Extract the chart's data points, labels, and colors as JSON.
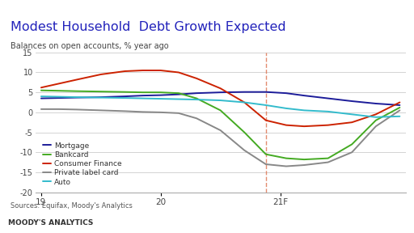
{
  "title": "Modest Household  Debt Growth Expected",
  "subtitle": "Balances on open accounts, % year ago",
  "source": "Sources: Equifax, Moody's Analytics",
  "footer": "MOODY'S ANALYTICS",
  "title_color": "#2222bb",
  "subtitle_color": "#444444",
  "source_color": "#555555",
  "footer_color": "#333333",
  "bg_color": "#ffffff",
  "footer_bg": "#d4d4d4",
  "plot_bg": "#ffffff",
  "grid_color": "#cccccc",
  "ylim": [
    -20,
    15
  ],
  "yticks": [
    -20,
    -15,
    -10,
    -5,
    0,
    5,
    10,
    15
  ],
  "xtick_labels": [
    "19",
    "20",
    "21F"
  ],
  "xtick_positions": [
    0.0,
    1.0,
    2.0
  ],
  "vline_x": 1.88,
  "series": {
    "Mortgage": {
      "color": "#1c1c99",
      "x": [
        0.0,
        0.15,
        0.3,
        0.5,
        0.7,
        0.85,
        1.0,
        1.15,
        1.3,
        1.5,
        1.7,
        1.88,
        2.05,
        2.2,
        2.4,
        2.6,
        2.8,
        3.0
      ],
      "y": [
        3.5,
        3.6,
        3.7,
        3.8,
        4.0,
        4.2,
        4.3,
        4.5,
        4.8,
        5.0,
        5.1,
        5.1,
        4.8,
        4.2,
        3.5,
        2.8,
        2.2,
        1.8
      ]
    },
    "Bankcard": {
      "color": "#44aa22",
      "x": [
        0.0,
        0.15,
        0.3,
        0.5,
        0.7,
        0.85,
        1.0,
        1.15,
        1.3,
        1.5,
        1.7,
        1.88,
        2.05,
        2.2,
        2.4,
        2.6,
        2.8,
        3.0
      ],
      "y": [
        5.5,
        5.4,
        5.3,
        5.2,
        5.1,
        5.0,
        5.0,
        4.8,
        3.5,
        0.5,
        -5.0,
        -10.5,
        -11.5,
        -11.8,
        -11.5,
        -8.0,
        -2.0,
        1.2
      ]
    },
    "Consumer Finance": {
      "color": "#cc2200",
      "x": [
        0.0,
        0.15,
        0.3,
        0.5,
        0.7,
        0.85,
        1.0,
        1.15,
        1.3,
        1.5,
        1.7,
        1.88,
        2.05,
        2.2,
        2.4,
        2.6,
        2.8,
        3.0
      ],
      "y": [
        6.2,
        7.2,
        8.2,
        9.5,
        10.3,
        10.5,
        10.5,
        10.0,
        8.5,
        6.0,
        2.5,
        -2.0,
        -3.2,
        -3.5,
        -3.2,
        -2.5,
        -0.5,
        2.5
      ]
    },
    "Private label card": {
      "color": "#888888",
      "x": [
        0.0,
        0.15,
        0.3,
        0.5,
        0.7,
        0.85,
        1.0,
        1.15,
        1.3,
        1.5,
        1.7,
        1.88,
        2.05,
        2.2,
        2.4,
        2.6,
        2.8,
        3.0
      ],
      "y": [
        0.8,
        0.8,
        0.7,
        0.5,
        0.3,
        0.1,
        0.0,
        -0.2,
        -1.5,
        -4.5,
        -9.5,
        -13.0,
        -13.5,
        -13.2,
        -12.5,
        -10.0,
        -3.5,
        0.5
      ]
    },
    "Auto": {
      "color": "#33bbcc",
      "x": [
        0.0,
        0.15,
        0.3,
        0.5,
        0.7,
        0.85,
        1.0,
        1.15,
        1.3,
        1.5,
        1.7,
        1.88,
        2.05,
        2.2,
        2.4,
        2.6,
        2.8,
        3.0
      ],
      "y": [
        4.0,
        3.9,
        3.8,
        3.7,
        3.6,
        3.5,
        3.4,
        3.3,
        3.2,
        3.0,
        2.5,
        1.8,
        1.0,
        0.5,
        0.2,
        -0.5,
        -1.2,
        -1.0
      ]
    }
  },
  "legend_order": [
    "Mortgage",
    "Bankcard",
    "Consumer Finance",
    "Private label card",
    "Auto"
  ]
}
